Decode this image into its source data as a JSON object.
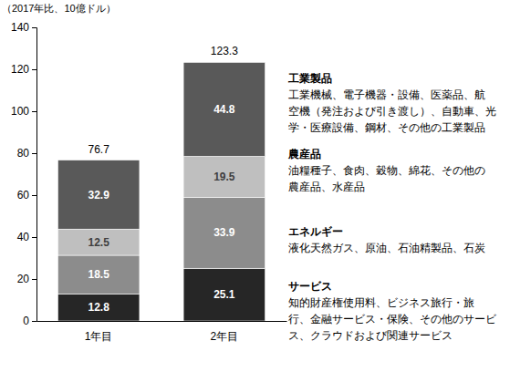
{
  "chart_data": {
    "type": "bar",
    "stacked": true,
    "data_labels": true,
    "grid": false,
    "y_label": "（2017年比、10億ドル）",
    "categories": [
      "1年目",
      "2年目"
    ],
    "ylim": [
      0,
      140
    ],
    "yticks": [
      0,
      20,
      40,
      60,
      80,
      100,
      120,
      140
    ],
    "totals": [
      76.7,
      123.3
    ],
    "series": [
      {
        "name": "サービス",
        "color": "#262626",
        "values": [
          12.8,
          25.1
        ],
        "description": [
          "知的財産権使用料、ビジネス旅行・旅",
          "行、金融サービス・保険、その他のサービ",
          "ス、クラウドおよび関連サービス"
        ]
      },
      {
        "name": "エネルギー",
        "color": "#8c8c8c",
        "values": [
          18.5,
          33.9
        ],
        "description": [
          "液化天然ガス、原油、石油精製品、石炭"
        ]
      },
      {
        "name": "農産品",
        "color": "#bfbfbf",
        "values": [
          12.5,
          19.5
        ],
        "description": [
          "油糧種子、食肉、穀物、綿花、その他の",
          "農産品、水産品"
        ]
      },
      {
        "name": "工業製品",
        "color": "#595959",
        "values": [
          32.9,
          44.8
        ],
        "description": [
          "工業機械、電子機器・設備、医薬品、航",
          "空機（発注および引き渡し）、自動車、光",
          "学・医療設備、鋼材、その他の工業製品"
        ]
      }
    ]
  }
}
